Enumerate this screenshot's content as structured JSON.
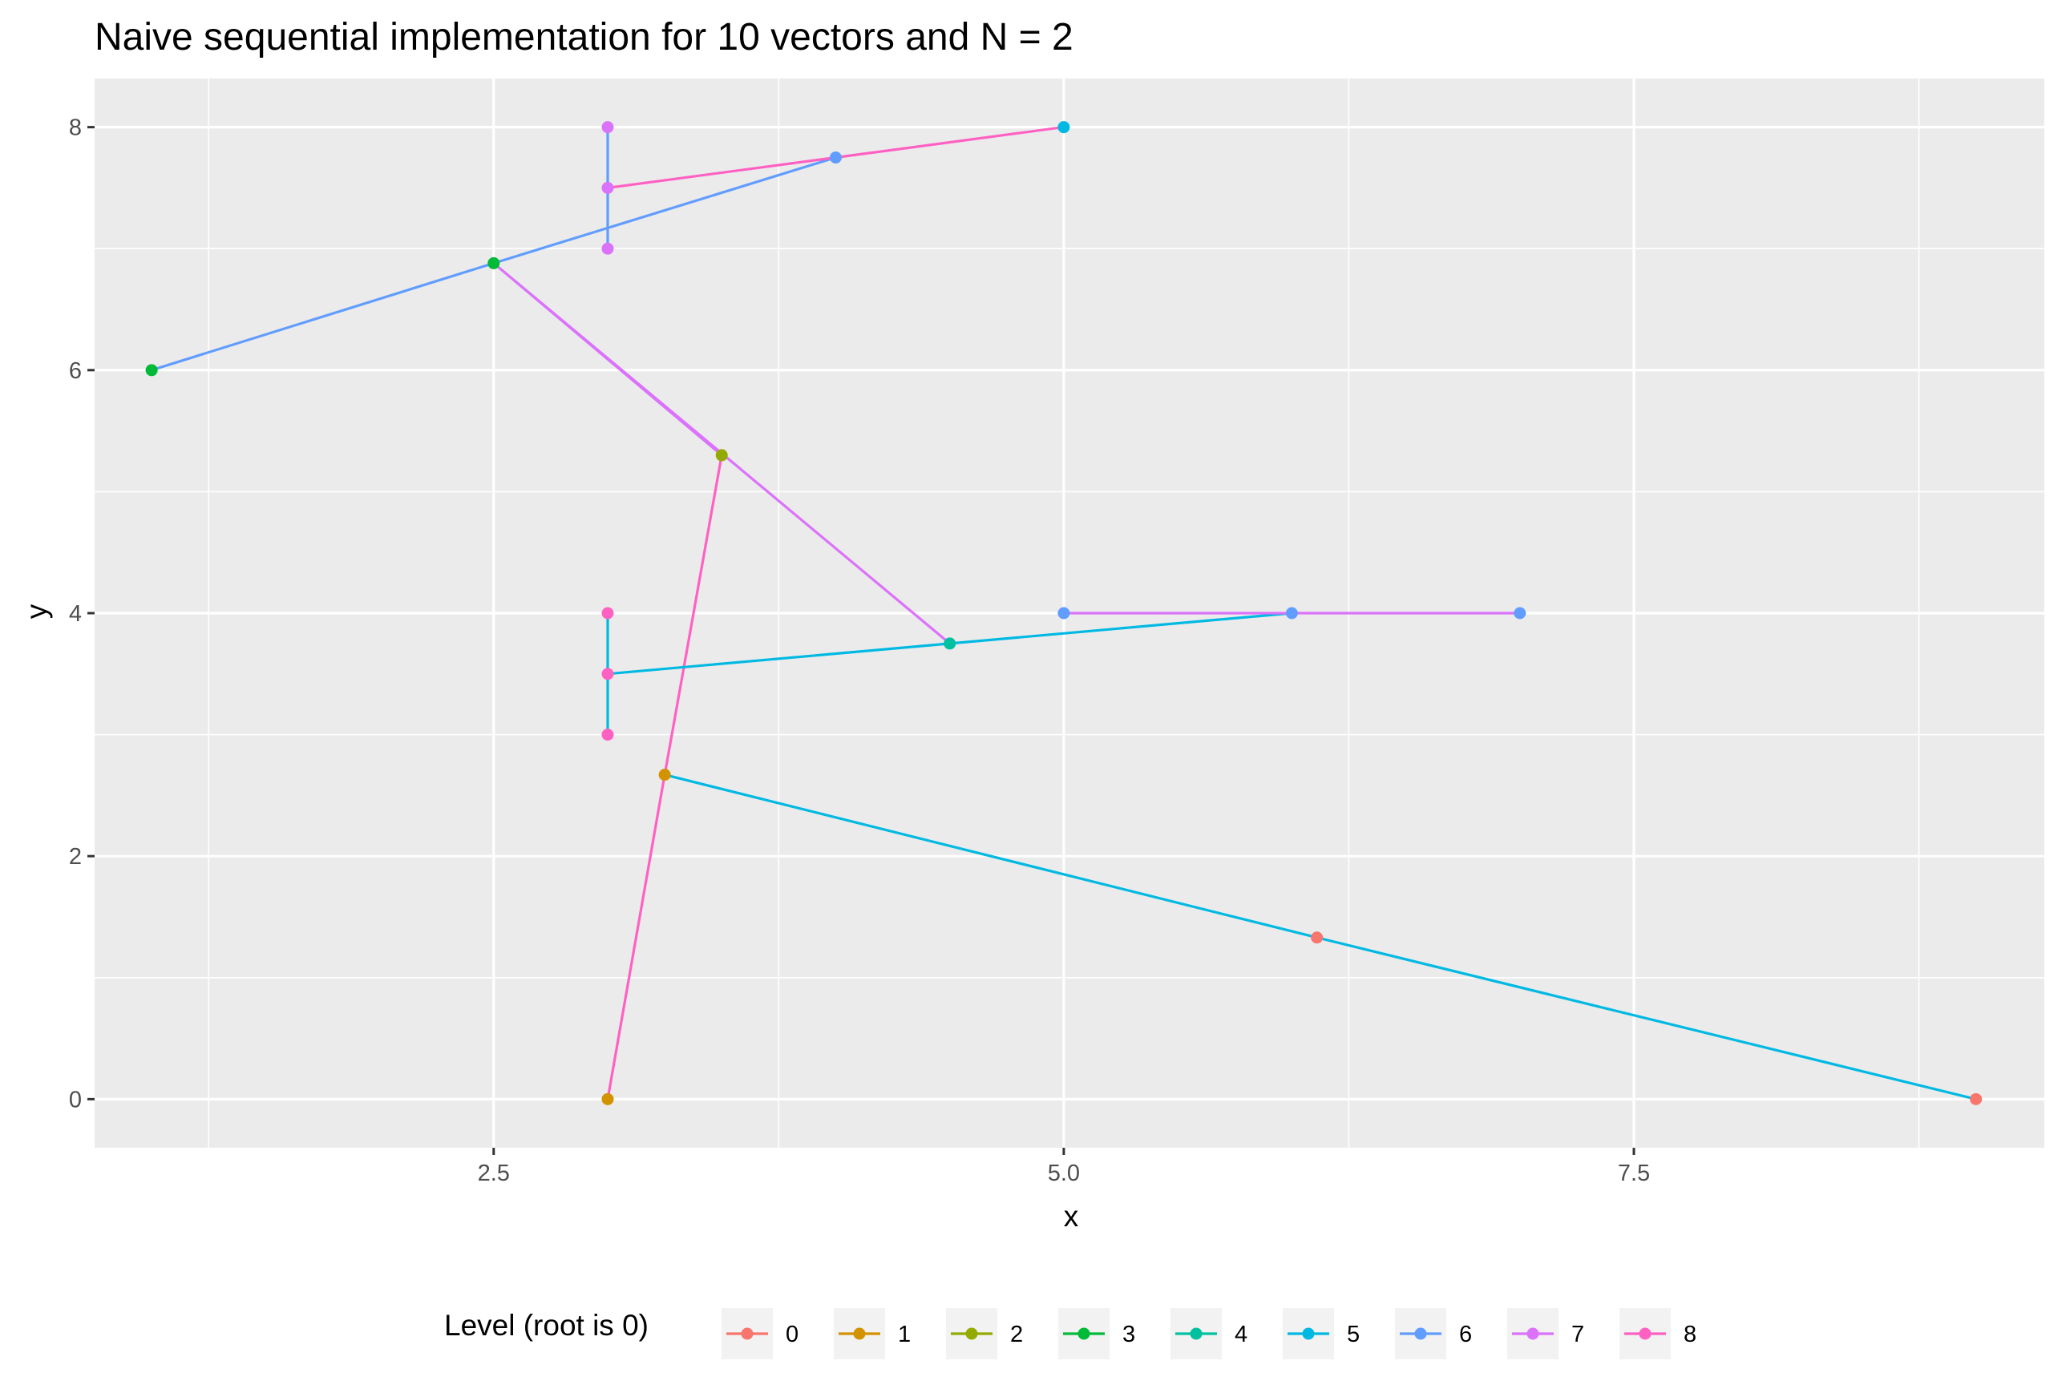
{
  "chart_data": {
    "type": "line",
    "title": "Naive sequential implementation for 10 vectors and N = 2",
    "xlabel": "x",
    "ylabel": "y",
    "xlim": [
      0.75,
      9.3
    ],
    "ylim": [
      -0.4,
      8.4
    ],
    "x_ticks": [
      2.5,
      5.0,
      7.5
    ],
    "x_tick_labels": [
      "2.5",
      "5.0",
      "7.5"
    ],
    "y_ticks": [
      0,
      2,
      4,
      6,
      8
    ],
    "y_tick_labels": [
      "0",
      "2",
      "4",
      "6",
      "8"
    ],
    "grid": true,
    "panel_background": "#ebebeb",
    "grid_color": "#ffffff",
    "legend": {
      "title": "Level (root is 0)",
      "position": "bottom",
      "labels": [
        "0",
        "1",
        "2",
        "3",
        "4",
        "5",
        "6",
        "7",
        "8"
      ],
      "colors": [
        "#F8766D",
        "#D39200",
        "#93AA00",
        "#00BA38",
        "#00C19F",
        "#00B9E3",
        "#619CFF",
        "#DB72FB",
        "#FF61C3"
      ]
    },
    "series": [
      {
        "name": "5",
        "color": "#00B9E3",
        "points": [
          [
            9.0,
            0.0
          ],
          [
            6.11,
            1.33
          ],
          [
            3.25,
            2.67
          ]
        ]
      },
      {
        "name": "8",
        "color": "#FF61C3",
        "points": [
          [
            3.0,
            0.0
          ],
          [
            3.25,
            2.67
          ],
          [
            3.5,
            5.3
          ]
        ]
      },
      {
        "name": "7",
        "color": "#DB72FB",
        "points": [
          [
            3.5,
            5.3
          ],
          [
            2.5,
            6.88
          ],
          [
            4.5,
            3.75
          ]
        ]
      },
      {
        "name": "6",
        "color": "#619CFF",
        "points": [
          [
            1.0,
            6.0
          ],
          [
            2.5,
            6.88
          ],
          [
            4.0,
            7.75
          ]
        ]
      },
      {
        "name": "8",
        "color": "#FF61C3",
        "points": [
          [
            3.0,
            7.5
          ],
          [
            4.0,
            7.75
          ],
          [
            5.0,
            8.0
          ]
        ]
      },
      {
        "name": "6",
        "color": "#619CFF",
        "points": [
          [
            3.0,
            7.0
          ],
          [
            3.0,
            7.5
          ],
          [
            3.0,
            8.0
          ]
        ]
      },
      {
        "name": "5",
        "color": "#00B9E3",
        "points": [
          [
            3.0,
            3.5
          ],
          [
            4.5,
            3.75
          ],
          [
            6.0,
            4.0
          ]
        ]
      },
      {
        "name": "5",
        "color": "#00B9E3",
        "points": [
          [
            3.0,
            3.0
          ],
          [
            3.0,
            3.5
          ],
          [
            3.0,
            4.0
          ]
        ]
      },
      {
        "name": "7",
        "color": "#DB72FB",
        "points": [
          [
            5.0,
            4.0
          ],
          [
            6.0,
            4.0
          ],
          [
            7.0,
            4.0
          ]
        ]
      }
    ],
    "points": [
      {
        "x": 9.0,
        "y": 0.0,
        "color": "#F8766D"
      },
      {
        "x": 6.11,
        "y": 1.33,
        "color": "#F8766D"
      },
      {
        "x": 3.0,
        "y": 0.0,
        "color": "#D39200"
      },
      {
        "x": 3.25,
        "y": 2.67,
        "color": "#D39200"
      },
      {
        "x": 3.5,
        "y": 5.3,
        "color": "#93AA00"
      },
      {
        "x": 1.0,
        "y": 6.0,
        "color": "#00BA38"
      },
      {
        "x": 2.5,
        "y": 6.88,
        "color": "#00BA38"
      },
      {
        "x": 4.5,
        "y": 3.75,
        "color": "#00C19F"
      },
      {
        "x": 5.0,
        "y": 8.0,
        "color": "#00B9E3"
      },
      {
        "x": 4.0,
        "y": 7.75,
        "color": "#619CFF"
      },
      {
        "x": 6.0,
        "y": 4.0,
        "color": "#619CFF"
      },
      {
        "x": 7.0,
        "y": 4.0,
        "color": "#619CFF"
      },
      {
        "x": 5.0,
        "y": 4.0,
        "color": "#619CFF"
      },
      {
        "x": 3.0,
        "y": 8.0,
        "color": "#DB72FB"
      },
      {
        "x": 3.0,
        "y": 7.5,
        "color": "#DB72FB"
      },
      {
        "x": 3.0,
        "y": 7.0,
        "color": "#DB72FB"
      },
      {
        "x": 3.0,
        "y": 4.0,
        "color": "#FF61C3"
      },
      {
        "x": 3.0,
        "y": 3.5,
        "color": "#FF61C3"
      },
      {
        "x": 3.0,
        "y": 3.0,
        "color": "#FF61C3"
      }
    ]
  }
}
